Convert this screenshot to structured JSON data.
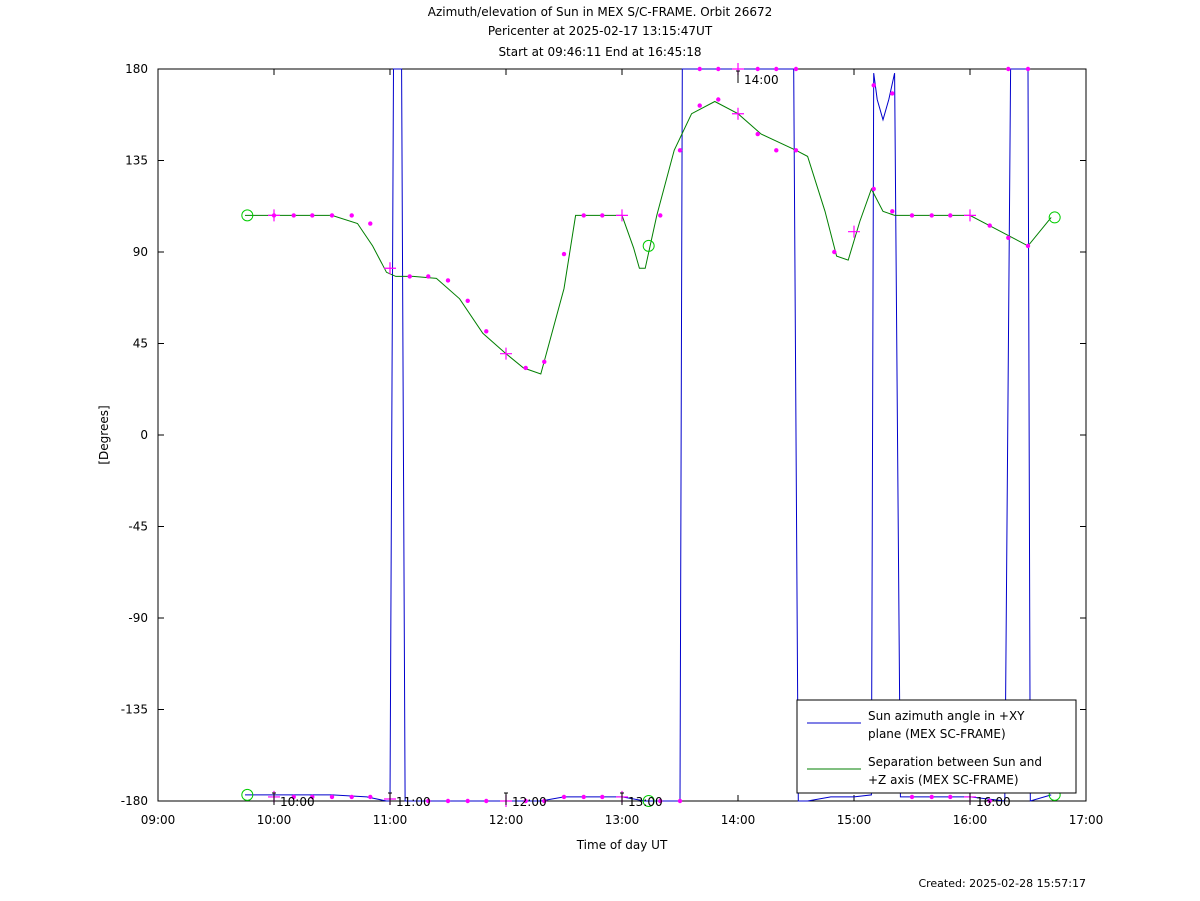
{
  "header": {
    "title": "Azimuth/elevation of Sun in MEX S/C-FRAME.  Orbit 26672",
    "subtitle": "Pericenter at 2025-02-17 13:15:47UT",
    "range": "Start at 09:46:11 End at 16:45:18"
  },
  "footer": {
    "created": "Created: 2025-02-28 15:57:17"
  },
  "chart_data": {
    "type": "line",
    "title": "Azimuth/elevation of Sun in MEX S/C-FRAME.  Orbit 26672",
    "xlabel": "Time of day UT",
    "ylabel": "[Degrees]",
    "xlim": [
      9.0,
      17.0
    ],
    "ylim": [
      -180,
      180
    ],
    "x_ticks": [
      {
        "v": 9,
        "label": "09:00"
      },
      {
        "v": 10,
        "label": "10:00"
      },
      {
        "v": 11,
        "label": "11:00"
      },
      {
        "v": 12,
        "label": "12:00"
      },
      {
        "v": 13,
        "label": "13:00"
      },
      {
        "v": 14,
        "label": "14:00"
      },
      {
        "v": 15,
        "label": "15:00"
      },
      {
        "v": 16,
        "label": "16:00"
      },
      {
        "v": 17,
        "label": "17:00"
      }
    ],
    "y_ticks": [
      {
        "v": 180,
        "label": "180"
      },
      {
        "v": 135,
        "label": "135"
      },
      {
        "v": 90,
        "label": "90"
      },
      {
        "v": 45,
        "label": "45"
      },
      {
        "v": 0,
        "label": "0"
      },
      {
        "v": -45,
        "label": "-45"
      },
      {
        "v": -90,
        "label": "-90"
      },
      {
        "v": -135,
        "label": "-135"
      },
      {
        "v": -180,
        "label": "-180"
      }
    ],
    "grid": false,
    "legend_position": "bottom-right",
    "series": [
      {
        "name": "Sun azimuth angle in +XY plane (MEX SC-FRAME)",
        "color": "#0000cc",
        "x": [
          9.75,
          10.0,
          10.5,
          10.8,
          10.97,
          11.0,
          11.03,
          11.07,
          11.1,
          11.13,
          11.16,
          11.5,
          12.0,
          12.3,
          12.5,
          13.0,
          13.2,
          13.5,
          13.52,
          13.55,
          13.6,
          14.0,
          14.45,
          14.48,
          14.52,
          14.55,
          14.6,
          14.8,
          15.0,
          15.15,
          15.17,
          15.2,
          15.25,
          15.3,
          15.35,
          15.4,
          15.45,
          15.5,
          16.0,
          16.3,
          16.35,
          16.5,
          16.5,
          16.52,
          16.7
        ],
        "y": [
          -177,
          -177,
          -177,
          -178,
          -180,
          -180,
          180,
          180,
          180,
          -180,
          -180,
          -180,
          -180,
          -180,
          -178,
          -178,
          -180,
          -180,
          180,
          180,
          180,
          180,
          180,
          180,
          -180,
          -180,
          -180,
          -178,
          -178,
          -177,
          178,
          165,
          155,
          165,
          178,
          -178,
          -178,
          -178,
          -178,
          -180,
          180,
          180,
          180,
          -180,
          -177
        ]
      },
      {
        "name": "Separation between Sun and +Z axis (MEX SC-FRAME)",
        "color": "#007f00",
        "x": [
          9.75,
          10.0,
          10.5,
          10.72,
          10.85,
          10.97,
          11.05,
          11.2,
          11.4,
          11.6,
          11.8,
          12.0,
          12.15,
          12.3,
          12.5,
          12.6,
          13.0,
          13.1,
          13.15,
          13.2,
          13.3,
          13.45,
          13.6,
          13.8,
          14.0,
          14.2,
          14.5,
          14.6,
          14.75,
          14.85,
          14.95,
          15.05,
          15.15,
          15.25,
          15.35,
          15.5,
          16.0,
          16.2,
          16.5,
          16.7
        ],
        "y": [
          108,
          108,
          108,
          104,
          93,
          80,
          78,
          78,
          77,
          67,
          50,
          40,
          33,
          30,
          72,
          108,
          108,
          92,
          82,
          82,
          108,
          140,
          158,
          164,
          158,
          148,
          140,
          137,
          110,
          88,
          86,
          105,
          121,
          110,
          108,
          108,
          108,
          102,
          93,
          107
        ]
      }
    ],
    "markers": {
      "dot_color": "#ff00ff",
      "dots_green": [
        [
          10.0,
          108
        ],
        [
          10.17,
          108
        ],
        [
          10.33,
          108
        ],
        [
          10.5,
          108
        ],
        [
          10.67,
          108
        ],
        [
          10.83,
          104
        ],
        [
          11.17,
          78
        ],
        [
          11.33,
          78
        ],
        [
          11.5,
          76
        ],
        [
          11.67,
          66
        ],
        [
          11.83,
          51
        ],
        [
          12.17,
          33
        ],
        [
          12.33,
          36
        ],
        [
          12.5,
          89
        ],
        [
          12.67,
          108
        ],
        [
          12.83,
          108
        ],
        [
          13.33,
          108
        ],
        [
          13.5,
          140
        ],
        [
          13.67,
          162
        ],
        [
          13.83,
          165
        ],
        [
          14.17,
          148
        ],
        [
          14.33,
          140
        ],
        [
          14.5,
          140
        ],
        [
          14.83,
          90
        ],
        [
          15.17,
          121
        ],
        [
          15.33,
          110
        ],
        [
          15.5,
          108
        ],
        [
          15.67,
          108
        ],
        [
          15.83,
          108
        ],
        [
          16.17,
          103
        ],
        [
          16.33,
          97
        ],
        [
          16.5,
          93
        ]
      ],
      "dots_blue": [
        [
          10.17,
          -178
        ],
        [
          10.33,
          -178
        ],
        [
          10.5,
          -178
        ],
        [
          10.67,
          -178
        ],
        [
          10.83,
          -178
        ],
        [
          11.33,
          -180
        ],
        [
          11.5,
          -180
        ],
        [
          11.67,
          -180
        ],
        [
          11.83,
          -180
        ],
        [
          12.17,
          -180
        ],
        [
          12.33,
          -180
        ],
        [
          12.5,
          -178
        ],
        [
          12.67,
          -178
        ],
        [
          12.83,
          -178
        ],
        [
          13.33,
          -180
        ],
        [
          13.5,
          -180
        ],
        [
          13.67,
          180
        ],
        [
          13.83,
          180
        ],
        [
          14.17,
          180
        ],
        [
          14.33,
          180
        ],
        [
          14.5,
          180
        ],
        [
          15.17,
          172
        ],
        [
          15.33,
          168
        ],
        [
          15.5,
          -178
        ],
        [
          15.67,
          -178
        ],
        [
          15.83,
          -178
        ],
        [
          16.17,
          -180
        ],
        [
          16.33,
          180
        ],
        [
          16.5,
          180
        ]
      ],
      "crosses": [
        [
          10.0,
          108
        ],
        [
          11.0,
          82
        ],
        [
          12.0,
          40
        ],
        [
          13.0,
          108
        ],
        [
          14.0,
          158
        ],
        [
          15.0,
          100
        ],
        [
          16.0,
          108
        ],
        [
          10.0,
          -178
        ],
        [
          11.0,
          -179
        ],
        [
          12.0,
          -180
        ],
        [
          13.0,
          -178
        ],
        [
          14.0,
          180
        ],
        [
          16.0,
          -178
        ]
      ],
      "circles": [
        [
          9.77,
          108
        ],
        [
          9.77,
          -177
        ],
        [
          13.23,
          93
        ],
        [
          13.23,
          -180
        ],
        [
          16.73,
          107
        ],
        [
          16.73,
          -177
        ]
      ]
    },
    "annotations": [
      {
        "x": 10.0,
        "y": -180,
        "label": "10:00"
      },
      {
        "x": 11.0,
        "y": -180,
        "label": "11:00"
      },
      {
        "x": 12.0,
        "y": -180,
        "label": "12:00"
      },
      {
        "x": 13.0,
        "y": -180,
        "label": "13:00"
      },
      {
        "x": 14.0,
        "y": 180,
        "label": "14:00"
      },
      {
        "x": 16.0,
        "y": -180,
        "label": "16:00"
      }
    ],
    "legend": [
      {
        "lines": [
          "Sun azimuth angle in +XY",
          "plane (MEX SC-FRAME)"
        ],
        "color": "#0000cc"
      },
      {
        "lines": [
          "Separation between Sun and",
          "+Z axis (MEX SC-FRAME)"
        ],
        "color": "#007f00"
      }
    ]
  }
}
